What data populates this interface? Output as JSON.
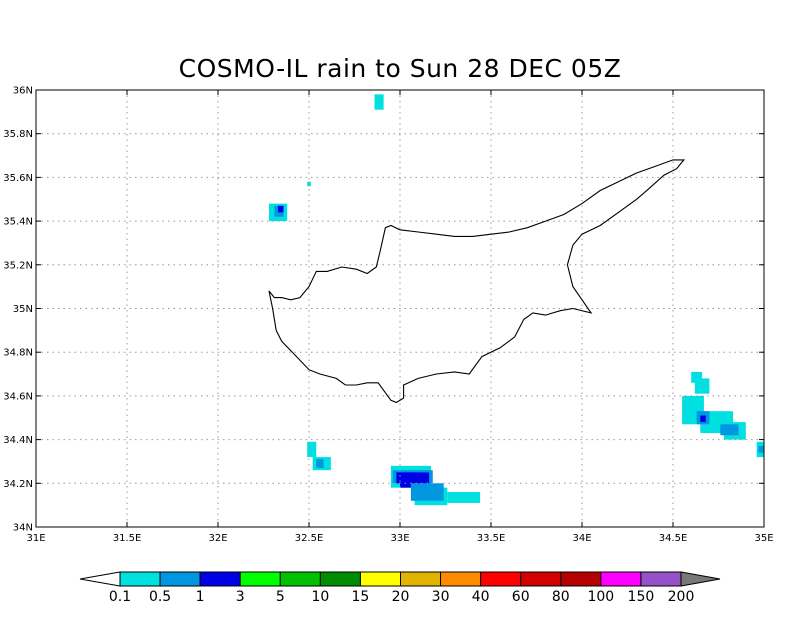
{
  "title": "COSMO-IL rain to Sun 28 DEC 05Z",
  "map": {
    "lon_range": [
      31,
      35
    ],
    "lat_range": [
      34,
      36
    ],
    "grid": true,
    "lon_ticks": [
      {
        "v": 31,
        "label": "31E"
      },
      {
        "v": 31.5,
        "label": "31.5E"
      },
      {
        "v": 32,
        "label": "32E"
      },
      {
        "v": 32.5,
        "label": "32.5E"
      },
      {
        "v": 33,
        "label": "33E"
      },
      {
        "v": 33.5,
        "label": "33.5E"
      },
      {
        "v": 34,
        "label": "34E"
      },
      {
        "v": 34.5,
        "label": "34.5E"
      },
      {
        "v": 35,
        "label": "35E"
      }
    ],
    "lat_ticks": [
      {
        "v": 34,
        "label": "34N"
      },
      {
        "v": 34.2,
        "label": "34.2N"
      },
      {
        "v": 34.4,
        "label": "34.4N"
      },
      {
        "v": 34.6,
        "label": "34.6N"
      },
      {
        "v": 34.8,
        "label": "34.8N"
      },
      {
        "v": 35,
        "label": "35N"
      },
      {
        "v": 35.2,
        "label": "35.2N"
      },
      {
        "v": 35.4,
        "label": "35.4N"
      },
      {
        "v": 35.6,
        "label": "35.6N"
      },
      {
        "v": 35.8,
        "label": "35.8N"
      },
      {
        "v": 36,
        "label": "36N"
      }
    ],
    "coastline": [
      [
        32.28,
        35.08
      ],
      [
        32.31,
        35.05
      ],
      [
        32.35,
        35.05
      ],
      [
        32.4,
        35.04
      ],
      [
        32.45,
        35.05
      ],
      [
        32.5,
        35.1
      ],
      [
        32.54,
        35.17
      ],
      [
        32.6,
        35.17
      ],
      [
        32.68,
        35.19
      ],
      [
        32.76,
        35.18
      ],
      [
        32.82,
        35.16
      ],
      [
        32.87,
        35.19
      ],
      [
        32.89,
        35.26
      ],
      [
        32.92,
        35.37
      ],
      [
        32.95,
        35.38
      ],
      [
        33.0,
        35.36
      ],
      [
        33.1,
        35.35
      ],
      [
        33.2,
        35.34
      ],
      [
        33.3,
        35.33
      ],
      [
        33.4,
        35.33
      ],
      [
        33.5,
        35.34
      ],
      [
        33.6,
        35.35
      ],
      [
        33.7,
        35.37
      ],
      [
        33.8,
        35.4
      ],
      [
        33.9,
        35.43
      ],
      [
        34.0,
        35.48
      ],
      [
        34.1,
        35.54
      ],
      [
        34.2,
        35.58
      ],
      [
        34.3,
        35.62
      ],
      [
        34.4,
        35.65
      ],
      [
        34.5,
        35.68
      ],
      [
        34.56,
        35.68
      ],
      [
        34.52,
        35.64
      ],
      [
        34.45,
        35.61
      ],
      [
        34.37,
        35.55
      ],
      [
        34.3,
        35.5
      ],
      [
        34.2,
        35.44
      ],
      [
        34.1,
        35.38
      ],
      [
        34.0,
        35.34
      ],
      [
        33.95,
        35.29
      ],
      [
        33.92,
        35.2
      ],
      [
        33.95,
        35.1
      ],
      [
        34.0,
        35.04
      ],
      [
        34.05,
        34.98
      ],
      [
        33.95,
        35.0
      ],
      [
        33.88,
        34.99
      ],
      [
        33.8,
        34.97
      ],
      [
        33.73,
        34.98
      ],
      [
        33.68,
        34.95
      ],
      [
        33.63,
        34.87
      ],
      [
        33.55,
        34.82
      ],
      [
        33.45,
        34.78
      ],
      [
        33.38,
        34.7
      ],
      [
        33.3,
        34.71
      ],
      [
        33.2,
        34.7
      ],
      [
        33.1,
        34.68
      ],
      [
        33.02,
        34.65
      ],
      [
        33.02,
        34.59
      ],
      [
        32.98,
        34.57
      ],
      [
        32.95,
        34.58
      ],
      [
        32.88,
        34.66
      ],
      [
        32.82,
        34.66
      ],
      [
        32.76,
        34.65
      ],
      [
        32.7,
        34.65
      ],
      [
        32.65,
        34.68
      ],
      [
        32.56,
        34.7
      ],
      [
        32.5,
        34.72
      ],
      [
        32.42,
        34.79
      ],
      [
        32.35,
        34.85
      ],
      [
        32.32,
        34.9
      ],
      [
        32.3,
        35.0
      ],
      [
        32.28,
        35.08
      ]
    ],
    "rain_cells": [
      {
        "lon": 32.86,
        "lat": 35.91,
        "w": 0.05,
        "h": 0.07,
        "color": "#00e0e0"
      },
      {
        "lon": 32.49,
        "lat": 35.56,
        "w": 0.02,
        "h": 0.02,
        "color": "#00e0e0"
      },
      {
        "lon": 32.28,
        "lat": 35.4,
        "w": 0.1,
        "h": 0.08,
        "color": "#00e0e0"
      },
      {
        "lon": 32.31,
        "lat": 35.42,
        "w": 0.05,
        "h": 0.05,
        "color": "#0096e0"
      },
      {
        "lon": 32.33,
        "lat": 35.44,
        "w": 0.03,
        "h": 0.03,
        "color": "#0000e6"
      },
      {
        "lon": 32.49,
        "lat": 34.32,
        "w": 0.05,
        "h": 0.07,
        "color": "#00e0e0"
      },
      {
        "lon": 32.52,
        "lat": 34.26,
        "w": 0.1,
        "h": 0.06,
        "color": "#00e0e0"
      },
      {
        "lon": 32.54,
        "lat": 34.27,
        "w": 0.04,
        "h": 0.04,
        "color": "#0096e0"
      },
      {
        "lon": 32.95,
        "lat": 34.18,
        "w": 0.22,
        "h": 0.1,
        "color": "#00e0e0"
      },
      {
        "lon": 33.08,
        "lat": 34.1,
        "w": 0.18,
        "h": 0.08,
        "color": "#00e0e0"
      },
      {
        "lon": 33.26,
        "lat": 34.11,
        "w": 0.18,
        "h": 0.05,
        "color": "#00e0e0"
      },
      {
        "lon": 32.96,
        "lat": 34.2,
        "w": 0.22,
        "h": 0.06,
        "color": "#0096e0"
      },
      {
        "lon": 33.06,
        "lat": 34.12,
        "w": 0.18,
        "h": 0.08,
        "color": "#0096e0"
      },
      {
        "lon": 32.98,
        "lat": 34.2,
        "w": 0.18,
        "h": 0.05,
        "color": "#0000e6"
      },
      {
        "lon": 33.0,
        "lat": 34.18,
        "w": 0.06,
        "h": 0.04,
        "color": "#0000e6"
      },
      {
        "lon": 34.6,
        "lat": 34.66,
        "w": 0.06,
        "h": 0.05,
        "color": "#00e0e0"
      },
      {
        "lon": 34.62,
        "lat": 34.61,
        "w": 0.08,
        "h": 0.07,
        "color": "#00e0e0"
      },
      {
        "lon": 34.55,
        "lat": 34.47,
        "w": 0.12,
        "h": 0.13,
        "color": "#00e0e0"
      },
      {
        "lon": 34.65,
        "lat": 34.43,
        "w": 0.18,
        "h": 0.1,
        "color": "#00e0e0"
      },
      {
        "lon": 34.78,
        "lat": 34.4,
        "w": 0.12,
        "h": 0.08,
        "color": "#00e0e0"
      },
      {
        "lon": 34.96,
        "lat": 34.32,
        "w": 0.04,
        "h": 0.07,
        "color": "#00e0e0"
      },
      {
        "lon": 34.63,
        "lat": 34.47,
        "w": 0.07,
        "h": 0.06,
        "color": "#0096e0"
      },
      {
        "lon": 34.76,
        "lat": 34.42,
        "w": 0.1,
        "h": 0.05,
        "color": "#0096e0"
      },
      {
        "lon": 34.97,
        "lat": 34.34,
        "w": 0.03,
        "h": 0.03,
        "color": "#0096e0"
      },
      {
        "lon": 34.65,
        "lat": 34.48,
        "w": 0.03,
        "h": 0.03,
        "color": "#0000e6"
      }
    ]
  },
  "colorbar": {
    "low_color": "#ffffff",
    "high_color": "#787878",
    "colors": [
      "#00e0e0",
      "#0096e0",
      "#0000e6",
      "#00ff00",
      "#00c000",
      "#008c00",
      "#ffff00",
      "#e0b400",
      "#ff8c00",
      "#ff0000",
      "#d20000",
      "#b40000",
      "#ff00ff",
      "#9650c8"
    ],
    "labels": [
      "0.1",
      "0.5",
      "1",
      "3",
      "5",
      "10",
      "15",
      "20",
      "30",
      "40",
      "60",
      "80",
      "100",
      "150",
      "200"
    ]
  }
}
